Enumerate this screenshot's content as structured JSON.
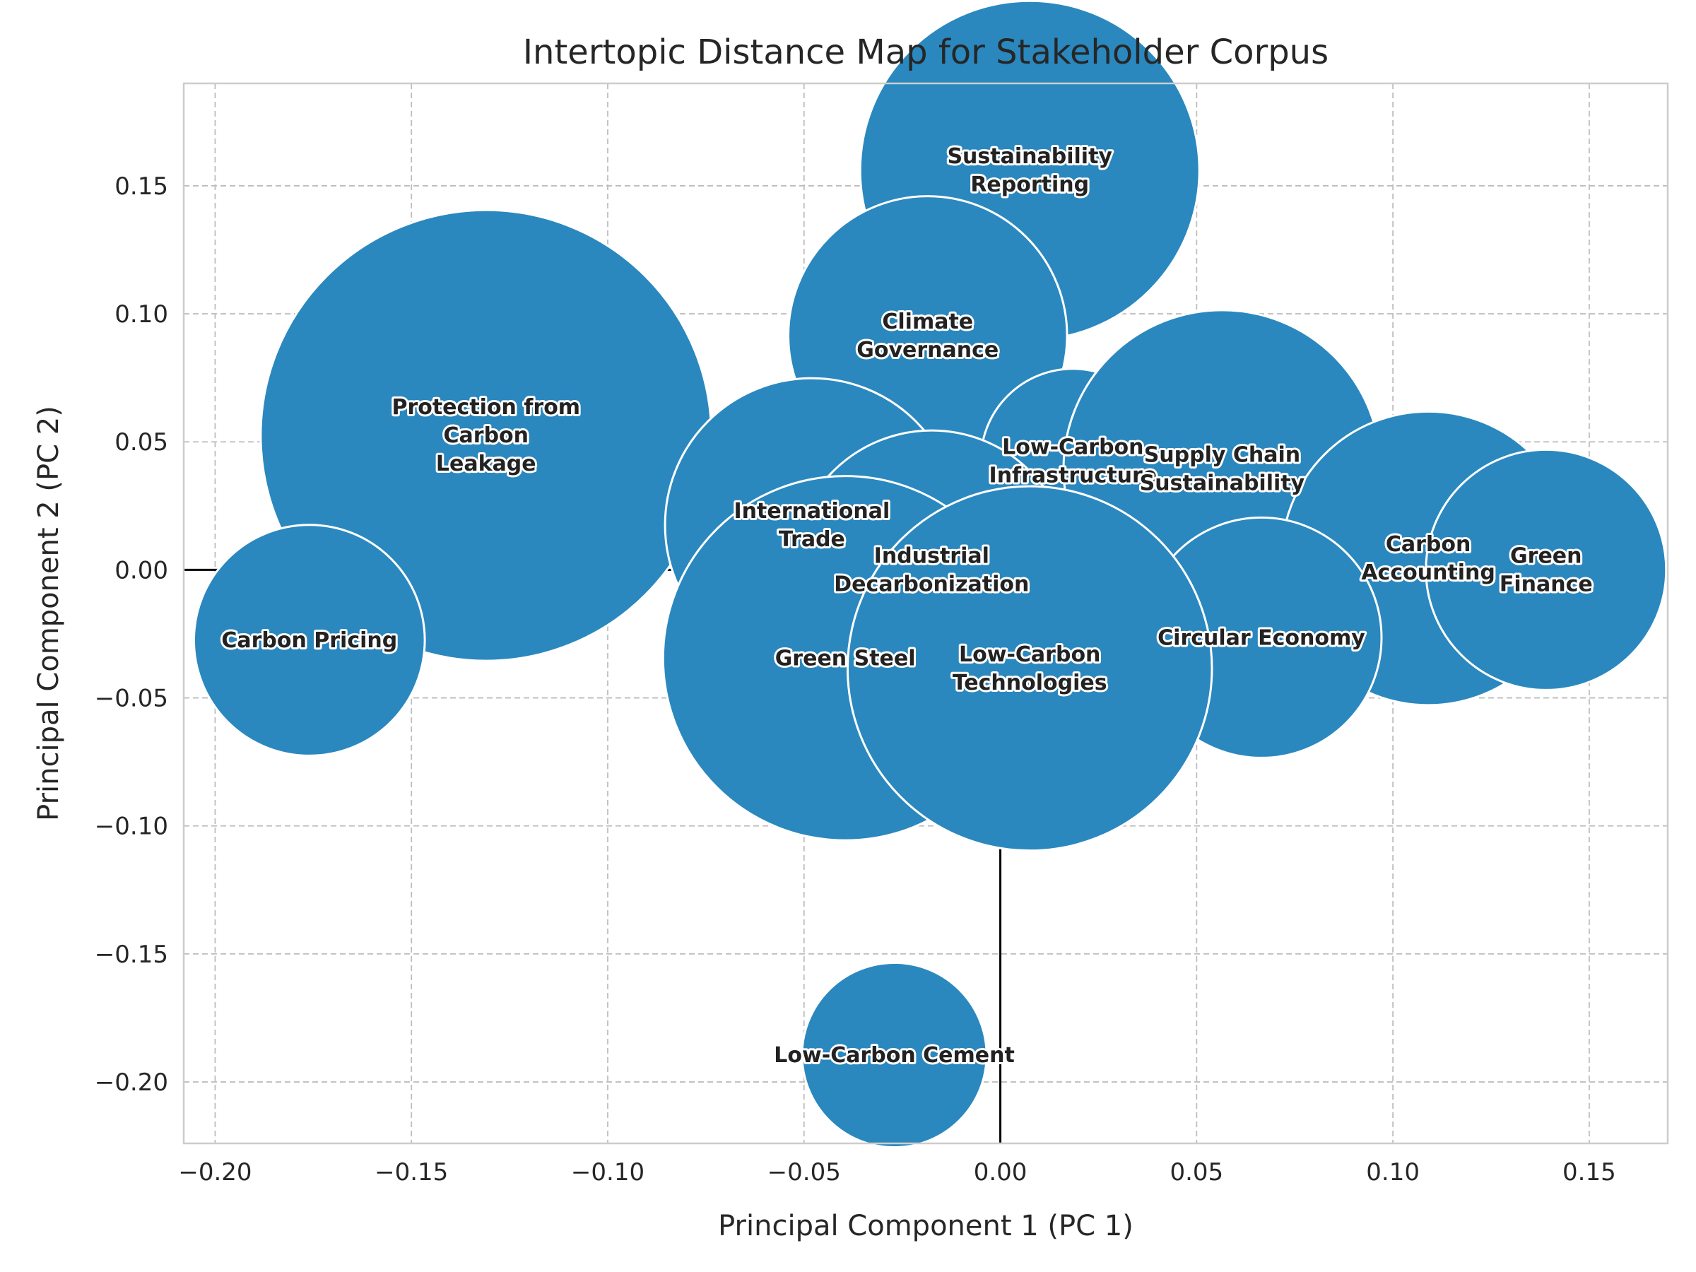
{
  "chart_data": {
    "type": "scatter",
    "title": "Intertopic Distance Map for Stakeholder Corpus",
    "xlabel": "Principal Component 1 (PC 1)",
    "ylabel": "Principal Component 2 (PC 2)",
    "xlim": [
      -0.208,
      0.17
    ],
    "ylim": [
      -0.224,
      0.19
    ],
    "xticks": [
      -0.2,
      -0.15,
      -0.1,
      -0.05,
      0.0,
      0.05,
      0.1,
      0.15
    ],
    "xtick_labels": [
      "−0.20",
      "−0.15",
      "−0.10",
      "−0.05",
      "0.00",
      "0.05",
      "0.10",
      "0.15"
    ],
    "yticks": [
      -0.2,
      -0.15,
      -0.1,
      -0.05,
      0.0,
      0.05,
      0.1,
      0.15
    ],
    "ytick_labels": [
      "−0.20",
      "−0.15",
      "−0.10",
      "−0.05",
      "0.00",
      "0.05",
      "0.10",
      "0.15"
    ],
    "grid": true,
    "bubble_color": "#2a88bf",
    "bubble_edge_color": "#ffffff",
    "axis_line_color": "#000000",
    "points": [
      {
        "label": "Sustainability\nReporting",
        "x": 0.0075,
        "y": 0.156,
        "size": 0.0432
      },
      {
        "label": "Climate\nGovernance",
        "x": -0.0185,
        "y": 0.0915,
        "size": 0.0355
      },
      {
        "label": "Protection from\nCarbon\nLeakage",
        "x": -0.131,
        "y": 0.0525,
        "size": 0.0574
      },
      {
        "label": "Low-Carbon\nInfrastructure",
        "x": 0.0185,
        "y": 0.0425,
        "size": 0.0235
      },
      {
        "label": "Supply Chain\nSustainability",
        "x": 0.0565,
        "y": 0.0395,
        "size": 0.0404
      },
      {
        "label": "International\nTrade",
        "x": -0.048,
        "y": 0.0175,
        "size": 0.0374
      },
      {
        "label": "Carbon\nAccounting",
        "x": 0.109,
        "y": 0.0045,
        "size": 0.0374
      },
      {
        "label": "Green\nFinance",
        "x": 0.139,
        "y": 0.0,
        "size": 0.0306
      },
      {
        "label": "Industrial\nDecarbonization",
        "x": -0.0175,
        "y": 0.0,
        "size": 0.0355
      },
      {
        "label": "Carbon Pricing",
        "x": -0.176,
        "y": -0.0275,
        "size": 0.0294
      },
      {
        "label": "Circular Economy",
        "x": 0.0665,
        "y": -0.0265,
        "size": 0.0306
      },
      {
        "label": "Green Steel",
        "x": -0.0395,
        "y": -0.0345,
        "size": 0.0464
      },
      {
        "label": "Low-Carbon\nTechnologies",
        "x": 0.0075,
        "y": -0.0385,
        "size": 0.0464
      },
      {
        "label": "Low-Carbon Cement",
        "x": -0.027,
        "y": -0.1895,
        "size": 0.0235
      }
    ]
  }
}
